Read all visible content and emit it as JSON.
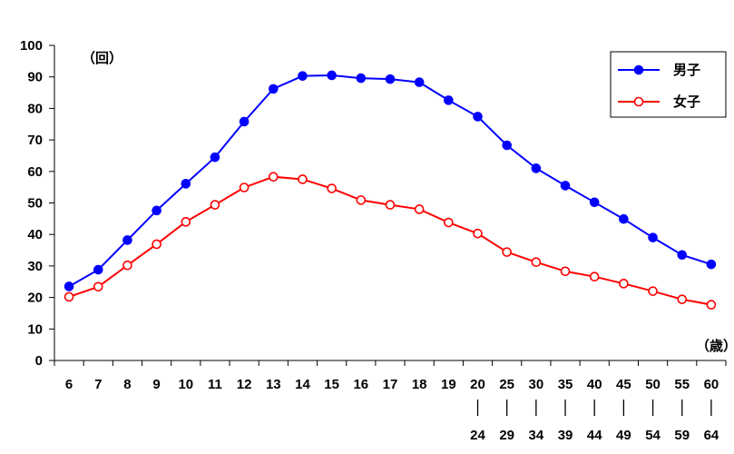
{
  "chart_data": {
    "type": "line",
    "y_unit": "（回）",
    "x_unit": "（歳）",
    "ylim": [
      0,
      100
    ],
    "yticks": [
      0,
      10,
      20,
      30,
      40,
      50,
      60,
      70,
      80,
      90,
      100
    ],
    "grid": false,
    "legend_position": "top-right",
    "categories": [
      {
        "top": "6",
        "bottom": ""
      },
      {
        "top": "7",
        "bottom": ""
      },
      {
        "top": "8",
        "bottom": ""
      },
      {
        "top": "9",
        "bottom": ""
      },
      {
        "top": "10",
        "bottom": ""
      },
      {
        "top": "11",
        "bottom": ""
      },
      {
        "top": "12",
        "bottom": ""
      },
      {
        "top": "13",
        "bottom": ""
      },
      {
        "top": "14",
        "bottom": ""
      },
      {
        "top": "15",
        "bottom": ""
      },
      {
        "top": "16",
        "bottom": ""
      },
      {
        "top": "17",
        "bottom": ""
      },
      {
        "top": "18",
        "bottom": ""
      },
      {
        "top": "19",
        "bottom": ""
      },
      {
        "top": "20",
        "bottom": "24"
      },
      {
        "top": "25",
        "bottom": "29"
      },
      {
        "top": "30",
        "bottom": "34"
      },
      {
        "top": "35",
        "bottom": "39"
      },
      {
        "top": "40",
        "bottom": "44"
      },
      {
        "top": "45",
        "bottom": "49"
      },
      {
        "top": "50",
        "bottom": "54"
      },
      {
        "top": "55",
        "bottom": "59"
      },
      {
        "top": "60",
        "bottom": "64"
      }
    ],
    "series": [
      {
        "name": "男子",
        "color": "#0000ff",
        "marker": "filled-circle",
        "values": [
          23.5,
          28.8,
          38.2,
          47.6,
          56.1,
          64.5,
          75.8,
          86.2,
          90.3,
          90.5,
          89.6,
          89.3,
          88.3,
          82.6,
          77.4,
          68.3,
          61.0,
          55.5,
          50.2,
          44.9,
          39.0,
          33.5,
          30.5
        ]
      },
      {
        "name": "女子",
        "color": "#ff0000",
        "marker": "open-circle",
        "values": [
          20.2,
          23.4,
          30.2,
          36.9,
          44.0,
          49.4,
          54.9,
          58.3,
          57.5,
          54.6,
          50.9,
          49.4,
          48.0,
          43.8,
          40.3,
          34.4,
          31.2,
          28.3,
          26.6,
          24.4,
          22.0,
          19.4,
          17.7
        ]
      }
    ]
  }
}
